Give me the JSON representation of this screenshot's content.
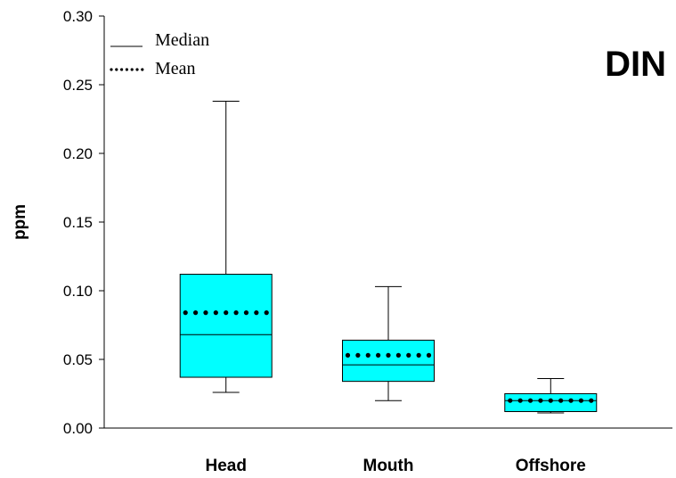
{
  "chart_data": {
    "type": "box",
    "title": "DIN",
    "xlabel": "",
    "ylabel": "ppm",
    "ylim": [
      0,
      0.3
    ],
    "yticks": [
      "0.00",
      "0.05",
      "0.10",
      "0.15",
      "0.20",
      "0.25",
      "0.30"
    ],
    "grid": false,
    "legend_position": "top-left",
    "legend": [
      {
        "label": "Median",
        "style": "solid"
      },
      {
        "label": "Mean",
        "style": "dotted"
      }
    ],
    "box_color": "#00FFFF",
    "categories": [
      "Head",
      "Mouth",
      "Offshore"
    ],
    "boxes": [
      {
        "category": "Head",
        "whisker_low": 0.026,
        "q1": 0.037,
        "median": 0.068,
        "q3": 0.112,
        "whisker_high": 0.238,
        "mean": 0.084
      },
      {
        "category": "Mouth",
        "whisker_low": 0.02,
        "q1": 0.034,
        "median": 0.046,
        "q3": 0.064,
        "whisker_high": 0.103,
        "mean": 0.053
      },
      {
        "category": "Offshore",
        "whisker_low": 0.011,
        "q1": 0.012,
        "median": 0.02,
        "q3": 0.025,
        "whisker_high": 0.036,
        "mean": 0.02
      }
    ]
  }
}
